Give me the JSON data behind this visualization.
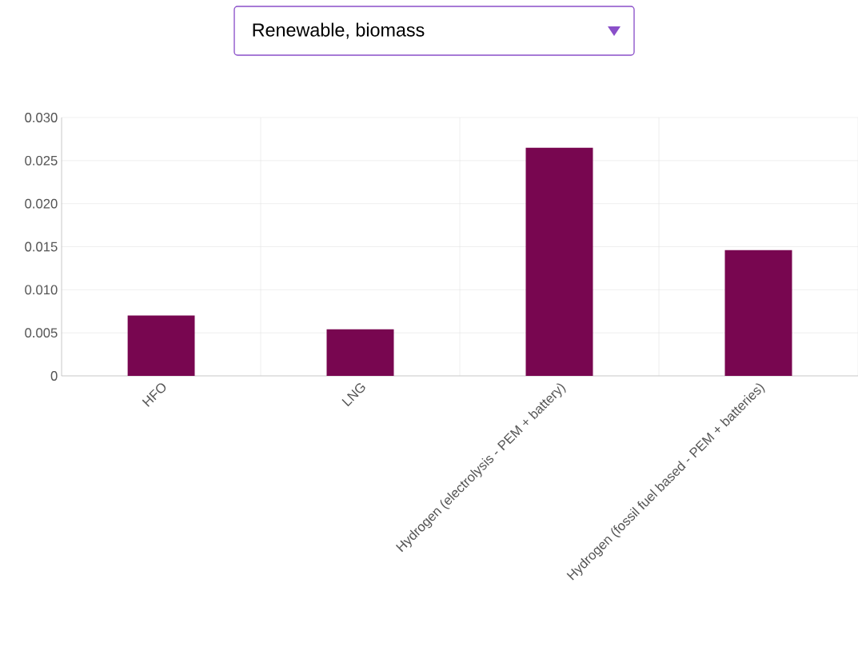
{
  "chart_data": {
    "type": "bar",
    "title": "Renewable, biomass",
    "categories": [
      "HFO",
      "LNG",
      "Hydrogen (electrolysis - PEM + battery)",
      "Hydrogen (fossil fuel based - PEM + batteries)"
    ],
    "values": [
      0.007,
      0.0054,
      0.0265,
      0.0146
    ],
    "color": "#780650",
    "ylim": [
      0,
      0.03
    ],
    "yticks": [
      {
        "value": 0,
        "label": "0"
      },
      {
        "value": 0.005,
        "label": "0.005"
      },
      {
        "value": 0.01,
        "label": "0.010"
      },
      {
        "value": 0.015,
        "label": "0.015"
      },
      {
        "value": 0.02,
        "label": "0.020"
      },
      {
        "value": 0.025,
        "label": "0.025"
      },
      {
        "value": 0.03,
        "label": "0.030"
      }
    ],
    "grid": true
  }
}
